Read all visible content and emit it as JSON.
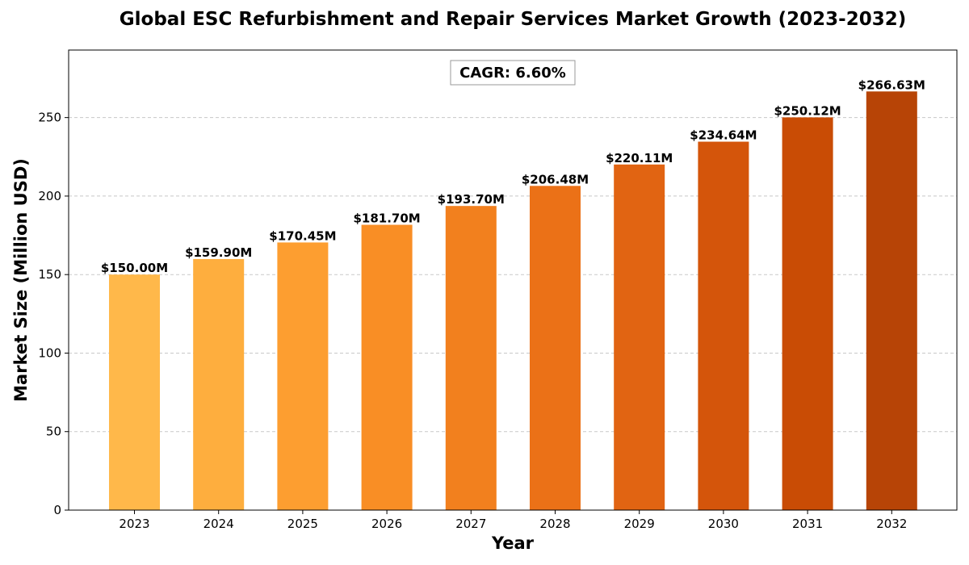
{
  "chart_data": {
    "type": "bar",
    "title": "Global ESC Refurbishment and Repair Services Market Growth (2023-2032)",
    "xlabel": "Year",
    "ylabel": "Market Size (Million USD)",
    "categories": [
      "2023",
      "2024",
      "2025",
      "2026",
      "2027",
      "2028",
      "2029",
      "2030",
      "2031",
      "2032"
    ],
    "values": [
      150.0,
      159.9,
      170.45,
      181.7,
      193.7,
      206.48,
      220.11,
      234.64,
      250.12,
      266.63
    ],
    "data_labels": [
      "$150.00M",
      "$159.90M",
      "$170.45M",
      "$181.70M",
      "$193.70M",
      "$206.48M",
      "$220.11M",
      "$234.64M",
      "$250.12M",
      "$266.63M"
    ],
    "bar_colors": [
      "#ffb84a",
      "#feae3e",
      "#fd9e30",
      "#f98e25",
      "#f2801e",
      "#eb7117",
      "#e16412",
      "#d4550b",
      "#c94c05",
      "#b74406"
    ],
    "ylim": [
      0,
      293
    ],
    "yticks": [
      0,
      50,
      100,
      150,
      200,
      250
    ],
    "grid": true,
    "annotation": "CAGR: 6.60%"
  }
}
